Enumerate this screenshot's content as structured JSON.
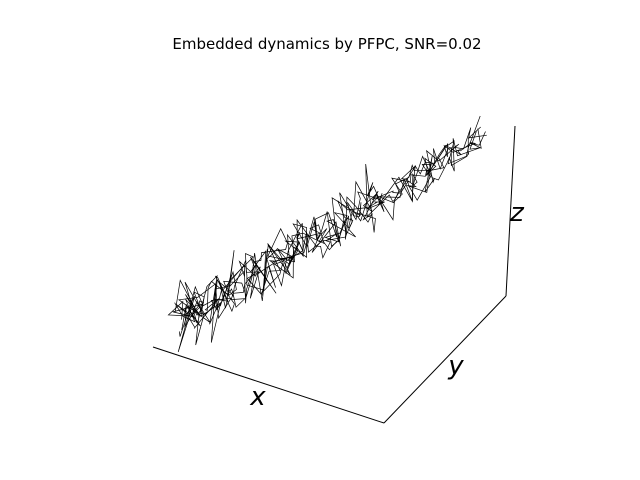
{
  "chart_data": {
    "type": "line",
    "projection": "3d",
    "title": "Embedded dynamics by PFPC, SNR=0.02",
    "xlabel": "x",
    "ylabel": "y",
    "zlabel": "z",
    "grid": false,
    "ticks": false,
    "legend": "none",
    "line_color": "#000000",
    "series": [
      {
        "description": "noisy embedded trajectory, multiple overlapping passes along a diagonal band",
        "t_range": [
          0,
          1
        ],
        "passes": 6,
        "points_per_pass": 70,
        "noise_level": "high"
      }
    ]
  }
}
